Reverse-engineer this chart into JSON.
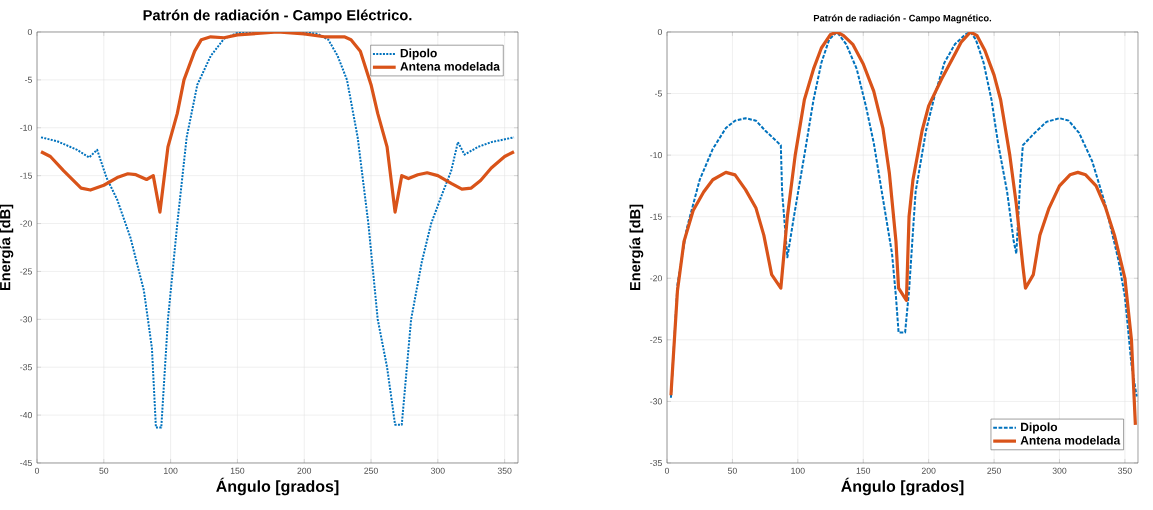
{
  "chart_data": [
    {
      "type": "line",
      "title": "Patrón de radiación - Campo Eléctrico.",
      "xlabel": "Ángulo [grados]",
      "ylabel": "Energía [dB]",
      "xlim": [
        0,
        360
      ],
      "ylim": [
        -45,
        0
      ],
      "xticks": [
        0,
        50,
        100,
        150,
        200,
        250,
        300,
        350
      ],
      "yticks": [
        -45,
        -40,
        -35,
        -30,
        -25,
        -20,
        -15,
        -10,
        -5,
        0
      ],
      "grid": true,
      "legend": "top right",
      "series": [
        {
          "name": "Dipolo",
          "color": "#0072bd",
          "line_style": "dotted",
          "x": [
            3,
            15,
            30,
            39,
            45,
            52,
            60,
            70,
            80,
            86,
            89,
            93,
            98,
            105,
            112,
            120,
            130,
            140,
            150,
            160,
            180,
            200,
            210,
            218,
            225,
            232,
            240,
            248,
            255,
            262,
            268,
            273,
            280,
            288,
            295,
            303,
            310,
            315,
            320,
            330,
            340,
            357
          ],
          "values": [
            -11,
            -11.4,
            -12.3,
            -13.1,
            -12.3,
            -15.2,
            -17.5,
            -21.5,
            -27,
            -33,
            -41.3,
            -41.3,
            -30,
            -20,
            -11,
            -5.5,
            -2.5,
            -0.7,
            -0.1,
            0,
            0,
            0,
            -0.2,
            -0.8,
            -2.5,
            -5,
            -11,
            -20,
            -30,
            -35,
            -41,
            -41,
            -30,
            -24,
            -20,
            -17,
            -14.5,
            -11.5,
            -12.8,
            -12,
            -11.5,
            -11
          ]
        },
        {
          "name": "Antena modelada",
          "color": "#d95319",
          "line_style": "solid",
          "x": [
            3,
            10,
            20,
            33,
            40,
            50,
            60,
            68,
            74,
            82,
            87,
            92,
            98,
            105,
            110,
            118,
            123,
            130,
            140,
            150,
            170,
            180,
            200,
            215,
            230,
            235,
            242,
            250,
            255,
            262,
            268,
            273,
            278,
            285,
            292,
            300,
            310,
            318,
            325,
            332,
            340,
            350,
            357
          ],
          "values": [
            -12.5,
            -13,
            -14.5,
            -16.3,
            -16.5,
            -16,
            -15.2,
            -14.8,
            -14.9,
            -15.4,
            -15,
            -18.8,
            -12,
            -8.5,
            -5,
            -2,
            -0.8,
            -0.5,
            -0.6,
            -0.3,
            -0.1,
            0,
            -0.2,
            -0.5,
            -0.5,
            -0.8,
            -2,
            -5.5,
            -8.5,
            -12,
            -18.8,
            -15,
            -15.3,
            -14.9,
            -14.7,
            -15,
            -15.8,
            -16.4,
            -16.3,
            -15.5,
            -14.2,
            -13,
            -12.5
          ]
        }
      ]
    },
    {
      "type": "line",
      "title": "Patrón de radiación - Campo Magnético.",
      "xlabel": "Ángulo [grados]",
      "ylabel": "Energía [dB]",
      "xlim": [
        0,
        360
      ],
      "ylim": [
        -35,
        0
      ],
      "xticks": [
        0,
        50,
        100,
        150,
        200,
        250,
        300,
        350
      ],
      "yticks": [
        -35,
        -30,
        -25,
        -20,
        -15,
        -10,
        -5,
        0
      ],
      "grid": true,
      "legend": "bottom right",
      "series": [
        {
          "name": "Dipolo",
          "color": "#0072bd",
          "line_style": "dashed",
          "x": [
            3,
            8,
            15,
            25,
            35,
            45,
            52,
            60,
            68,
            75,
            87,
            88,
            92,
            97,
            105,
            112,
            118,
            124,
            130,
            137,
            145,
            152,
            158,
            165,
            172,
            175,
            177,
            182,
            185,
            190,
            198,
            205,
            212,
            220,
            228,
            232,
            236,
            242,
            248,
            253,
            260,
            265,
            267,
            270,
            272,
            280,
            290,
            300,
            307,
            315,
            325,
            335,
            345,
            350,
            355,
            359
          ],
          "values": [
            -29.7,
            -20.5,
            -16,
            -12,
            -9.5,
            -7.8,
            -7.2,
            -7,
            -7.2,
            -8,
            -9.2,
            -13,
            -18.3,
            -15,
            -10,
            -5.5,
            -2.5,
            -0.6,
            0,
            -1,
            -3,
            -6,
            -9,
            -13.5,
            -18,
            -21.5,
            -24.4,
            -24.4,
            -21,
            -13,
            -8,
            -5,
            -2.5,
            -1,
            -0.2,
            0,
            -0.6,
            -2.5,
            -5.5,
            -9,
            -13,
            -17,
            -18,
            -12,
            -9.2,
            -8.3,
            -7.3,
            -7,
            -7.2,
            -8.2,
            -10.5,
            -14,
            -18.5,
            -21.5,
            -27,
            -29.6
          ]
        },
        {
          "name": "Antena modelada",
          "color": "#d95319",
          "line_style": "solid",
          "x": [
            3,
            8,
            13,
            20,
            28,
            35,
            45,
            52,
            60,
            68,
            74,
            80,
            87,
            92,
            98,
            105,
            112,
            118,
            125,
            130,
            135,
            142,
            150,
            158,
            165,
            170,
            175,
            177,
            183,
            185,
            188,
            195,
            200,
            210,
            220,
            225,
            232,
            237,
            243,
            250,
            255,
            262,
            267,
            272,
            274,
            280,
            285,
            292,
            300,
            308,
            314,
            320,
            328,
            335,
            342,
            350,
            355,
            358
          ],
          "values": [
            -29.5,
            -21,
            -17,
            -14.5,
            -13,
            -12,
            -11.4,
            -11.6,
            -12.8,
            -14.3,
            -16.5,
            -19.7,
            -20.8,
            -15,
            -10,
            -5.5,
            -3,
            -1.3,
            -0.2,
            0,
            -0.3,
            -1,
            -2.6,
            -4.8,
            -7.8,
            -11.5,
            -17,
            -20.8,
            -21.8,
            -15,
            -12,
            -8,
            -6,
            -3.8,
            -1.8,
            -0.8,
            0,
            -0.3,
            -1.5,
            -3.5,
            -5.5,
            -10,
            -14,
            -19,
            -20.8,
            -19.7,
            -16.5,
            -14.3,
            -12.5,
            -11.6,
            -11.4,
            -11.6,
            -12.5,
            -14.2,
            -16.5,
            -20,
            -25,
            -31.9
          ]
        }
      ]
    }
  ]
}
